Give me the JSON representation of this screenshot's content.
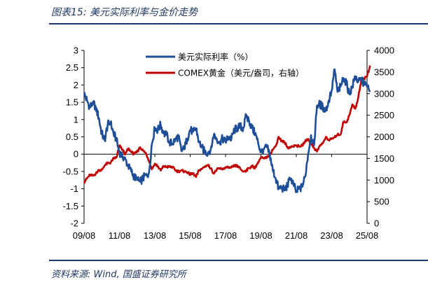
{
  "figure_title": "图表15:  美元实际利率与金价走势",
  "source": "资料来源:  Wind, 国盛证券研究所",
  "chart_data": {
    "type": "line",
    "title": "",
    "x_ticks": [
      "09/08",
      "11/08",
      "13/08",
      "15/08",
      "17/08",
      "19/08",
      "21/08",
      "23/08",
      "25/08"
    ],
    "y_left": {
      "ylim": [
        -2,
        3
      ],
      "ticks": [
        "3",
        "2.5",
        "2",
        "1.5",
        "1",
        "0.5",
        "0",
        "-0.5",
        "-1",
        "-1.5",
        "-2"
      ]
    },
    "y_right": {
      "ylim": [
        0,
        4000
      ],
      "ticks": [
        "4000",
        "3500",
        "3000",
        "2500",
        "2000",
        "1500",
        "1000",
        "500",
        "0"
      ]
    },
    "grid": false,
    "legend_position": "top-center",
    "series": [
      {
        "name": "美元实际利率（%）",
        "axis": "left",
        "color": "#1f4e99",
        "points": [
          [
            "2009-08",
            1.75
          ],
          [
            "2009-10",
            1.55
          ],
          [
            "2009-12",
            1.35
          ],
          [
            "2010-02",
            1.5
          ],
          [
            "2010-04",
            1.35
          ],
          [
            "2010-06",
            1.05
          ],
          [
            "2010-08",
            0.6
          ],
          [
            "2010-10",
            0.4
          ],
          [
            "2010-12",
            0.85
          ],
          [
            "2011-02",
            0.9
          ],
          [
            "2011-04",
            0.6
          ],
          [
            "2011-06",
            0.4
          ],
          [
            "2011-08",
            0.05
          ],
          [
            "2011-10",
            -0.05
          ],
          [
            "2011-12",
            -0.15
          ],
          [
            "2012-02",
            -0.35
          ],
          [
            "2012-04",
            -0.5
          ],
          [
            "2012-06",
            -0.65
          ],
          [
            "2012-08",
            -0.75
          ],
          [
            "2012-10",
            -0.8
          ],
          [
            "2012-12",
            -0.7
          ],
          [
            "2013-02",
            -0.6
          ],
          [
            "2013-04",
            -0.55
          ],
          [
            "2013-06",
            0.3
          ],
          [
            "2013-08",
            0.75
          ],
          [
            "2013-10",
            0.7
          ],
          [
            "2013-12",
            0.85
          ],
          [
            "2014-02",
            0.6
          ],
          [
            "2014-04",
            0.55
          ],
          [
            "2014-06",
            0.35
          ],
          [
            "2014-08",
            0.3
          ],
          [
            "2014-10",
            0.45
          ],
          [
            "2014-12",
            0.5
          ],
          [
            "2015-02",
            0.1
          ],
          [
            "2015-04",
            0.15
          ],
          [
            "2015-06",
            0.45
          ],
          [
            "2015-08",
            0.7
          ],
          [
            "2015-10",
            0.65
          ],
          [
            "2015-12",
            0.75
          ],
          [
            "2016-02",
            0.35
          ],
          [
            "2016-04",
            0.2
          ],
          [
            "2016-06",
            0.05
          ],
          [
            "2016-08",
            0.05
          ],
          [
            "2016-10",
            0.15
          ],
          [
            "2016-12",
            0.55
          ],
          [
            "2017-02",
            0.45
          ],
          [
            "2017-04",
            0.35
          ],
          [
            "2017-06",
            0.45
          ],
          [
            "2017-08",
            0.35
          ],
          [
            "2017-10",
            0.5
          ],
          [
            "2017-12",
            0.45
          ],
          [
            "2018-02",
            0.7
          ],
          [
            "2018-04",
            0.75
          ],
          [
            "2018-06",
            0.8
          ],
          [
            "2018-08",
            0.75
          ],
          [
            "2018-10",
            1.1
          ],
          [
            "2018-12",
            0.95
          ],
          [
            "2019-02",
            0.75
          ],
          [
            "2019-04",
            0.6
          ],
          [
            "2019-06",
            0.35
          ],
          [
            "2019-08",
            0.05
          ],
          [
            "2019-10",
            0.15
          ],
          [
            "2019-12",
            0.2
          ],
          [
            "2020-02",
            0.0
          ],
          [
            "2020-04",
            -0.45
          ],
          [
            "2020-06",
            -0.7
          ],
          [
            "2020-08",
            -1.0
          ],
          [
            "2020-10",
            -0.95
          ],
          [
            "2020-12",
            -1.05
          ],
          [
            "2021-02",
            -0.9
          ],
          [
            "2021-04",
            -0.7
          ],
          [
            "2021-06",
            -0.85
          ],
          [
            "2021-08",
            -1.1
          ],
          [
            "2021-10",
            -1.0
          ],
          [
            "2021-12",
            -0.95
          ],
          [
            "2022-02",
            -0.65
          ],
          [
            "2022-04",
            0.0
          ],
          [
            "2022-06",
            0.55
          ],
          [
            "2022-08",
            0.25
          ],
          [
            "2022-10",
            1.4
          ],
          [
            "2022-12",
            1.45
          ],
          [
            "2023-02",
            1.35
          ],
          [
            "2023-04",
            1.25
          ],
          [
            "2023-06",
            1.55
          ],
          [
            "2023-08",
            1.85
          ],
          [
            "2023-10",
            2.45
          ],
          [
            "2023-12",
            1.8
          ],
          [
            "2024-02",
            1.95
          ],
          [
            "2024-04",
            2.2
          ],
          [
            "2024-06",
            2.05
          ],
          [
            "2024-08",
            1.75
          ],
          [
            "2024-10",
            1.95
          ],
          [
            "2024-12",
            2.25
          ],
          [
            "2025-02",
            2.1
          ],
          [
            "2025-04",
            2.15
          ],
          [
            "2025-06",
            2.05
          ],
          [
            "2025-08",
            1.95
          ],
          [
            "2025-10",
            1.8
          ]
        ]
      },
      {
        "name": "COMEX黄金（美元/盎司，右轴）",
        "axis": "right",
        "color": "#c00000",
        "points": [
          [
            "2009-08",
            950
          ],
          [
            "2009-10",
            1040
          ],
          [
            "2009-12",
            1120
          ],
          [
            "2010-02",
            1100
          ],
          [
            "2010-04",
            1150
          ],
          [
            "2010-06",
            1230
          ],
          [
            "2010-08",
            1230
          ],
          [
            "2010-10",
            1340
          ],
          [
            "2010-12",
            1390
          ],
          [
            "2011-02",
            1400
          ],
          [
            "2011-04",
            1500
          ],
          [
            "2011-06",
            1520
          ],
          [
            "2011-08",
            1800
          ],
          [
            "2011-10",
            1700
          ],
          [
            "2011-12",
            1600
          ],
          [
            "2012-02",
            1730
          ],
          [
            "2012-04",
            1650
          ],
          [
            "2012-06",
            1600
          ],
          [
            "2012-08",
            1650
          ],
          [
            "2012-10",
            1760
          ],
          [
            "2012-12",
            1680
          ],
          [
            "2013-02",
            1620
          ],
          [
            "2013-04",
            1450
          ],
          [
            "2013-06",
            1250
          ],
          [
            "2013-08",
            1380
          ],
          [
            "2013-10",
            1320
          ],
          [
            "2013-12",
            1220
          ],
          [
            "2014-02",
            1320
          ],
          [
            "2014-04",
            1300
          ],
          [
            "2014-06",
            1310
          ],
          [
            "2014-08",
            1300
          ],
          [
            "2014-10",
            1220
          ],
          [
            "2014-12",
            1200
          ],
          [
            "2015-02",
            1220
          ],
          [
            "2015-04",
            1200
          ],
          [
            "2015-06",
            1180
          ],
          [
            "2015-08",
            1130
          ],
          [
            "2015-10",
            1150
          ],
          [
            "2015-12",
            1070
          ],
          [
            "2016-02",
            1230
          ],
          [
            "2016-04",
            1260
          ],
          [
            "2016-06",
            1320
          ],
          [
            "2016-08",
            1350
          ],
          [
            "2016-10",
            1270
          ],
          [
            "2016-12",
            1150
          ],
          [
            "2017-02",
            1240
          ],
          [
            "2017-04",
            1270
          ],
          [
            "2017-06",
            1250
          ],
          [
            "2017-08",
            1300
          ],
          [
            "2017-10",
            1280
          ],
          [
            "2017-12",
            1290
          ],
          [
            "2018-02",
            1330
          ],
          [
            "2018-04",
            1330
          ],
          [
            "2018-06",
            1260
          ],
          [
            "2018-08",
            1200
          ],
          [
            "2018-10",
            1220
          ],
          [
            "2018-12",
            1280
          ],
          [
            "2019-02",
            1320
          ],
          [
            "2019-04",
            1280
          ],
          [
            "2019-06",
            1410
          ],
          [
            "2019-08",
            1520
          ],
          [
            "2019-10",
            1500
          ],
          [
            "2019-12",
            1520
          ],
          [
            "2020-02",
            1600
          ],
          [
            "2020-04",
            1700
          ],
          [
            "2020-06",
            1780
          ],
          [
            "2020-08",
            2000
          ],
          [
            "2020-10",
            1900
          ],
          [
            "2020-12",
            1880
          ],
          [
            "2021-02",
            1750
          ],
          [
            "2021-04",
            1770
          ],
          [
            "2021-06",
            1780
          ],
          [
            "2021-08",
            1800
          ],
          [
            "2021-10",
            1780
          ],
          [
            "2021-12",
            1800
          ],
          [
            "2022-02",
            1900
          ],
          [
            "2022-04",
            1950
          ],
          [
            "2022-06",
            1830
          ],
          [
            "2022-08",
            1750
          ],
          [
            "2022-10",
            1660
          ],
          [
            "2022-12",
            1800
          ],
          [
            "2023-02",
            1850
          ],
          [
            "2023-04",
            2000
          ],
          [
            "2023-06",
            1930
          ],
          [
            "2023-08",
            1950
          ],
          [
            "2023-10",
            1990
          ],
          [
            "2023-12",
            2060
          ],
          [
            "2024-02",
            2050
          ],
          [
            "2024-04",
            2350
          ],
          [
            "2024-06",
            2330
          ],
          [
            "2024-08",
            2500
          ],
          [
            "2024-10",
            2750
          ],
          [
            "2024-12",
            2650
          ],
          [
            "2025-02",
            2900
          ],
          [
            "2025-04",
            3300
          ],
          [
            "2025-06",
            3350
          ],
          [
            "2025-08",
            3400
          ],
          [
            "2025-10",
            3650
          ]
        ]
      }
    ]
  }
}
